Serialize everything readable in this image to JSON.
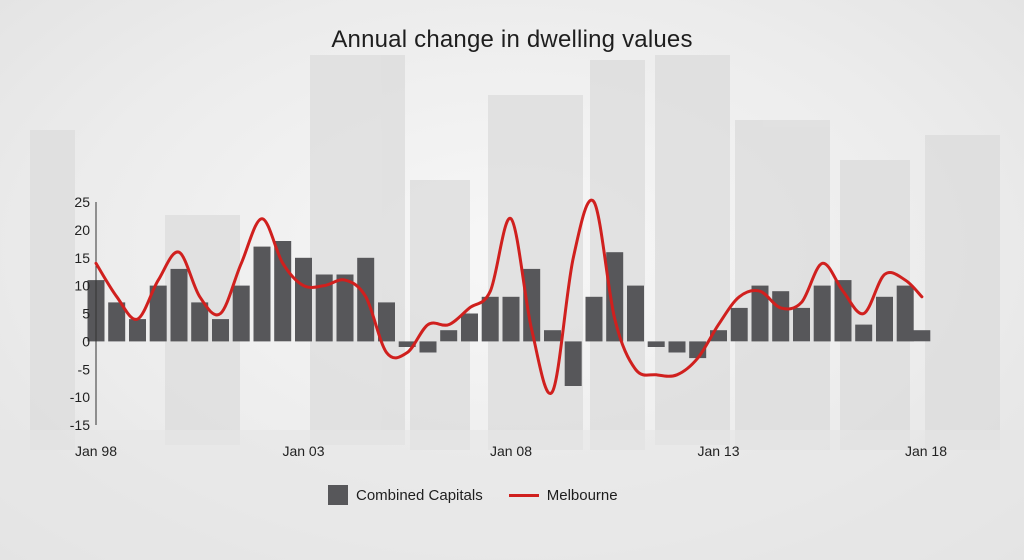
{
  "chart_data": {
    "type": "bar",
    "title": "Annual change in dwelling values",
    "xlabel": "",
    "ylabel": "",
    "ylim": [
      -15,
      25
    ],
    "yticks": [
      25,
      20,
      15,
      10,
      5,
      0,
      -5,
      -10,
      -15
    ],
    "xticks": [
      "Jan 98",
      "Jan 03",
      "Jan 08",
      "Jan 13",
      "Jan 18"
    ],
    "xlim": [
      1998.0,
      2018.0
    ],
    "grid": false,
    "legend": "bottom",
    "colors": {
      "combined": "#57575a",
      "melbourne": "#d0201e"
    },
    "series": [
      {
        "name": "Combined Capitals",
        "style": "bar",
        "x": [
          1998.0,
          1998.5,
          1999.0,
          1999.5,
          2000.0,
          2000.5,
          2001.0,
          2001.5,
          2002.0,
          2002.5,
          2003.0,
          2003.5,
          2004.0,
          2004.5,
          2005.0,
          2005.5,
          2006.0,
          2006.5,
          2007.0,
          2007.5,
          2008.0,
          2008.5,
          2009.0,
          2009.5,
          2010.0,
          2010.5,
          2011.0,
          2011.5,
          2012.0,
          2012.5,
          2013.0,
          2013.5,
          2014.0,
          2014.5,
          2015.0,
          2015.5,
          2016.0,
          2016.5,
          2017.0,
          2017.5,
          2017.9
        ],
        "values": [
          11,
          7,
          4,
          10,
          13,
          7,
          4,
          10,
          17,
          18,
          15,
          12,
          12,
          15,
          7,
          -1,
          -2,
          2,
          5,
          8,
          8,
          13,
          2,
          -8,
          8,
          16,
          10,
          -1,
          -2,
          -3,
          2,
          6,
          10,
          9,
          6,
          10,
          11,
          3,
          8,
          10,
          2
        ]
      },
      {
        "name": "Melbourne",
        "style": "line",
        "x": [
          1998.0,
          1998.5,
          1999.0,
          1999.5,
          2000.0,
          2000.5,
          2001.0,
          2001.5,
          2002.0,
          2002.5,
          2003.0,
          2003.5,
          2004.0,
          2004.5,
          2005.0,
          2005.5,
          2006.0,
          2006.5,
          2007.0,
          2007.5,
          2008.0,
          2008.5,
          2009.0,
          2009.5,
          2010.0,
          2010.5,
          2011.0,
          2011.5,
          2012.0,
          2012.5,
          2013.0,
          2013.5,
          2014.0,
          2014.5,
          2015.0,
          2015.5,
          2016.0,
          2016.5,
          2017.0,
          2017.5,
          2017.9
        ],
        "values": [
          14,
          8,
          4,
          11,
          16,
          8,
          5,
          14,
          22,
          14,
          10,
          10,
          11,
          8,
          -2,
          -2,
          3,
          3,
          6,
          9,
          22,
          2,
          -9,
          15,
          25,
          4,
          -5,
          -6,
          -6,
          -3,
          3,
          8,
          9,
          6,
          7,
          14,
          9,
          5,
          12,
          11,
          8
        ]
      }
    ]
  }
}
